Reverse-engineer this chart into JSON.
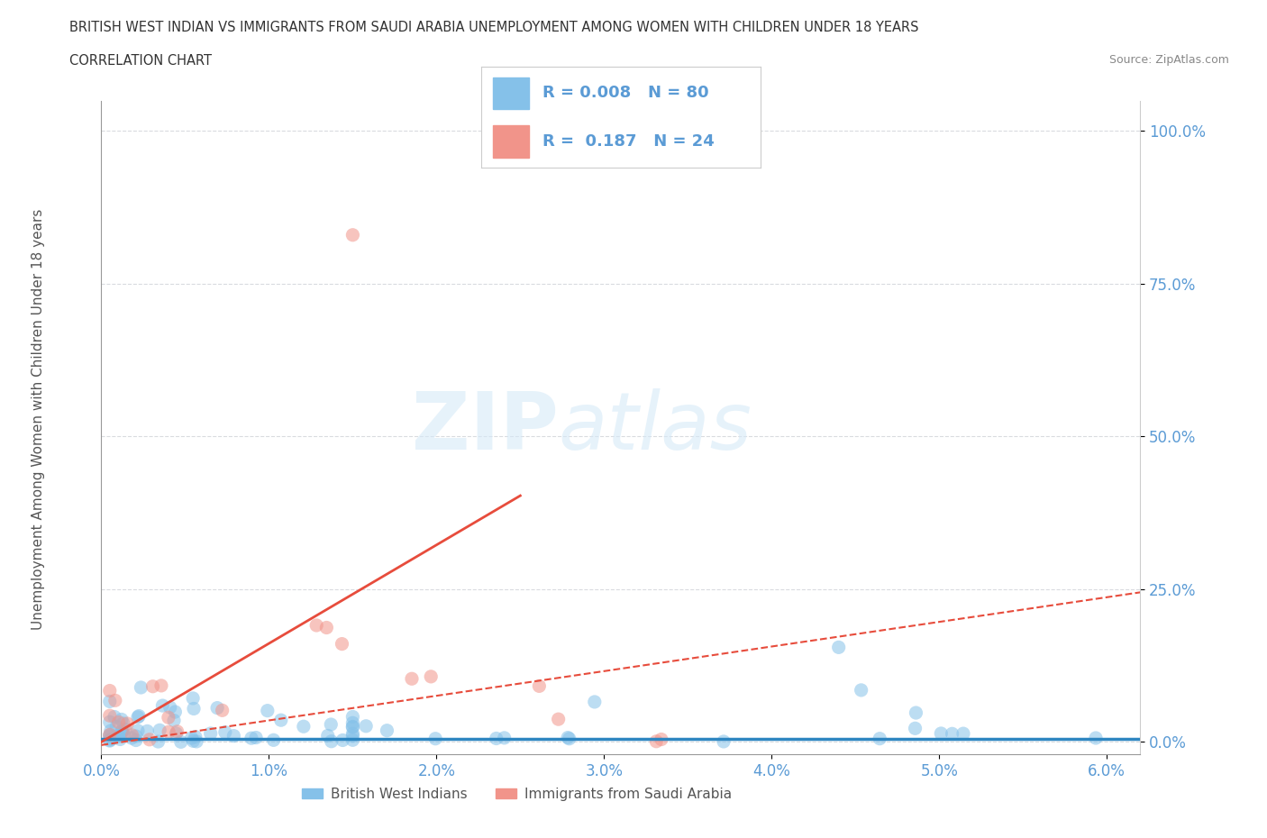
{
  "title": "BRITISH WEST INDIAN VS IMMIGRANTS FROM SAUDI ARABIA UNEMPLOYMENT AMONG WOMEN WITH CHILDREN UNDER 18 YEARS",
  "subtitle": "CORRELATION CHART",
  "source": "Source: ZipAtlas.com",
  "ylabel": "Unemployment Among Women with Children Under 18 years",
  "xlim": [
    0.0,
    0.062
  ],
  "ylim": [
    -0.02,
    1.05
  ],
  "yticks": [
    0.0,
    0.25,
    0.5,
    0.75,
    1.0
  ],
  "ytick_labels": [
    "0.0%",
    "25.0%",
    "50.0%",
    "75.0%",
    "100.0%"
  ],
  "xticks": [
    0.0,
    0.01,
    0.02,
    0.03,
    0.04,
    0.05,
    0.06
  ],
  "xtick_labels": [
    "0.0%",
    "1.0%",
    "2.0%",
    "3.0%",
    "4.0%",
    "5.0%",
    "6.0%"
  ],
  "watermark_zip": "ZIP",
  "watermark_atlas": "atlas",
  "legend_R1": "0.008",
  "legend_N1": "80",
  "legend_R2": "0.187",
  "legend_N2": "24",
  "color_blue": "#85C1E9",
  "color_pink": "#F1948A",
  "color_blue_line": "#2E86C1",
  "color_pink_line": "#E74C3C",
  "color_axis_text": "#5B9BD5",
  "background_color": "#FFFFFF",
  "grid_color": "#D5D8DC",
  "blue_line_y0": 0.005,
  "blue_line_y1": 0.005,
  "pink_line_y0": -0.005,
  "pink_line_y1": 0.245
}
